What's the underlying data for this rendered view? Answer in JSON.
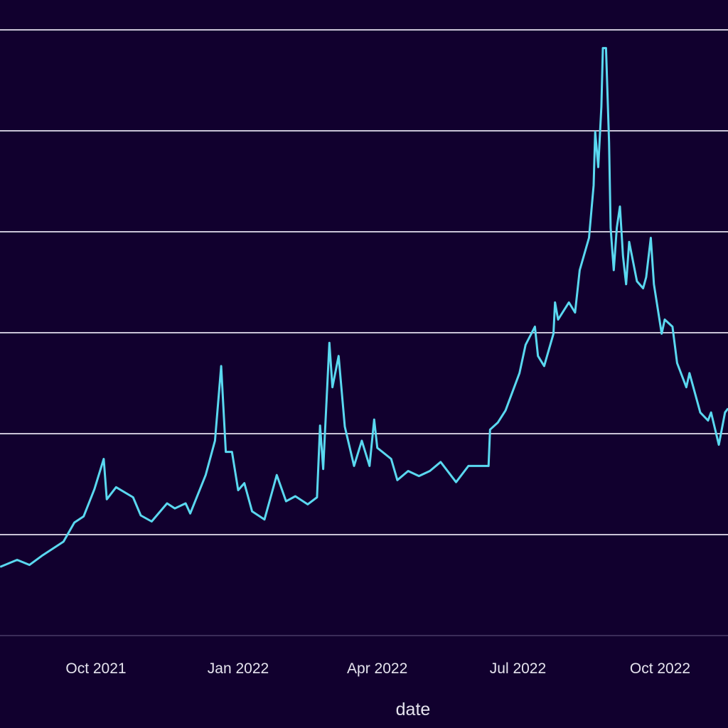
{
  "chart_data": {
    "type": "line",
    "title": "",
    "xlabel": "date",
    "ylabel": "",
    "ylim": [
      0,
      6
    ],
    "y_note_unlabeled": true,
    "grid": true,
    "x_ticks": [
      {
        "date": "2021-10-01",
        "label": "Oct 2021"
      },
      {
        "date": "2022-01-01",
        "label": "Jan 2022"
      },
      {
        "date": "2022-04-01",
        "label": "Apr 2022"
      },
      {
        "date": "2022-07-01",
        "label": "Jul 2022"
      },
      {
        "date": "2022-10-01",
        "label": "Oct 2022"
      }
    ],
    "colors": {
      "background": "#11002e",
      "line": "#5ad8f0",
      "grid": "#c9c3d6",
      "text": "#e6e4ee"
    },
    "series": [
      {
        "points": [
          [
            "2021-07-31",
            0.68
          ],
          [
            "2021-08-11",
            0.75
          ],
          [
            "2021-08-19",
            0.7
          ],
          [
            "2021-08-27",
            0.79
          ],
          [
            "2021-09-10",
            0.93
          ],
          [
            "2021-09-17",
            1.12
          ],
          [
            "2021-09-23",
            1.18
          ],
          [
            "2021-09-30",
            1.45
          ],
          [
            "2021-10-06",
            1.75
          ],
          [
            "2021-10-08",
            1.35
          ],
          [
            "2021-10-14",
            1.47
          ],
          [
            "2021-10-25",
            1.37
          ],
          [
            "2021-10-30",
            1.19
          ],
          [
            "2021-11-06",
            1.13
          ],
          [
            "2021-11-16",
            1.31
          ],
          [
            "2021-11-21",
            1.26
          ],
          [
            "2021-11-28",
            1.31
          ],
          [
            "2021-12-01",
            1.21
          ],
          [
            "2021-12-11",
            1.59
          ],
          [
            "2021-12-17",
            1.93
          ],
          [
            "2021-12-21",
            2.67
          ],
          [
            "2021-12-24",
            1.82
          ],
          [
            "2021-12-28",
            1.82
          ],
          [
            "2022-01-01",
            1.44
          ],
          [
            "2022-01-05",
            1.51
          ],
          [
            "2022-01-10",
            1.23
          ],
          [
            "2022-01-18",
            1.15
          ],
          [
            "2022-01-26",
            1.59
          ],
          [
            "2022-02-01",
            1.33
          ],
          [
            "2022-02-07",
            1.38
          ],
          [
            "2022-02-15",
            1.3
          ],
          [
            "2022-02-21",
            1.37
          ],
          [
            "2022-02-23",
            2.08
          ],
          [
            "2022-02-25",
            1.65
          ],
          [
            "2022-03-01",
            2.9
          ],
          [
            "2022-03-03",
            2.46
          ],
          [
            "2022-03-07",
            2.77
          ],
          [
            "2022-03-11",
            2.07
          ],
          [
            "2022-03-17",
            1.68
          ],
          [
            "2022-03-22",
            1.93
          ],
          [
            "2022-03-27",
            1.68
          ],
          [
            "2022-03-30",
            2.14
          ],
          [
            "2022-04-01",
            1.86
          ],
          [
            "2022-04-10",
            1.75
          ],
          [
            "2022-04-14",
            1.54
          ],
          [
            "2022-04-21",
            1.63
          ],
          [
            "2022-04-28",
            1.58
          ],
          [
            "2022-05-05",
            1.63
          ],
          [
            "2022-05-12",
            1.72
          ],
          [
            "2022-05-22",
            1.52
          ],
          [
            "2022-05-30",
            1.68
          ],
          [
            "2022-06-12",
            1.68
          ],
          [
            "2022-06-13",
            2.04
          ],
          [
            "2022-06-18",
            2.11
          ],
          [
            "2022-06-23",
            2.23
          ],
          [
            "2022-07-02",
            2.6
          ],
          [
            "2022-07-06",
            2.88
          ],
          [
            "2022-07-12",
            3.06
          ],
          [
            "2022-07-14",
            2.77
          ],
          [
            "2022-07-18",
            2.67
          ],
          [
            "2022-07-24",
            2.99
          ],
          [
            "2022-07-25",
            3.3
          ],
          [
            "2022-07-27",
            3.13
          ],
          [
            "2022-08-03",
            3.3
          ],
          [
            "2022-08-07",
            3.2
          ],
          [
            "2022-08-10",
            3.62
          ],
          [
            "2022-08-16",
            3.94
          ],
          [
            "2022-08-19",
            4.46
          ],
          [
            "2022-08-20",
            4.99
          ],
          [
            "2022-08-22",
            4.64
          ],
          [
            "2022-08-24",
            5.24
          ],
          [
            "2022-08-25",
            5.82
          ],
          [
            "2022-08-27",
            5.82
          ],
          [
            "2022-08-29",
            4.89
          ],
          [
            "2022-08-30",
            4.04
          ],
          [
            "2022-09-01",
            3.62
          ],
          [
            "2022-09-03",
            4.04
          ],
          [
            "2022-09-05",
            4.25
          ],
          [
            "2022-09-07",
            3.76
          ],
          [
            "2022-09-09",
            3.48
          ],
          [
            "2022-09-11",
            3.9
          ],
          [
            "2022-09-16",
            3.51
          ],
          [
            "2022-09-20",
            3.44
          ],
          [
            "2022-09-22",
            3.55
          ],
          [
            "2022-09-25",
            3.94
          ],
          [
            "2022-09-27",
            3.48
          ],
          [
            "2022-10-02",
            2.99
          ],
          [
            "2022-10-04",
            3.13
          ],
          [
            "2022-10-09",
            3.06
          ],
          [
            "2022-10-12",
            2.7
          ],
          [
            "2022-10-18",
            2.46
          ],
          [
            "2022-10-20",
            2.6
          ],
          [
            "2022-10-27",
            2.21
          ],
          [
            "2022-11-01",
            2.13
          ],
          [
            "2022-11-03",
            2.21
          ],
          [
            "2022-11-08",
            1.89
          ],
          [
            "2022-11-12",
            2.21
          ],
          [
            "2022-11-14",
            2.25
          ]
        ]
      }
    ]
  }
}
